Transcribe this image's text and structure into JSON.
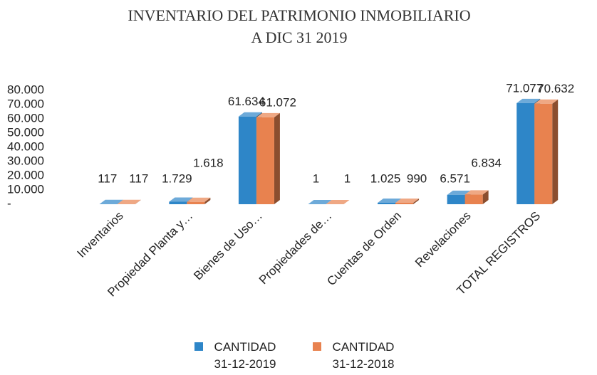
{
  "chart_data": {
    "type": "bar3d",
    "title": [
      "INVENTARIO DEL PATRIMONIO INMOBILIARIO",
      "A DIC 31 2019"
    ],
    "categories": [
      "Inventarios",
      "Propiedad Planta y…",
      "Bienes de Uso…",
      "Propiedades de…",
      "Cuentas de Orden",
      "Revelaciones",
      "TOTAL REGISTROS"
    ],
    "series": [
      {
        "name": "CANTIDAD 31-12-2019",
        "color": "#2e86c8",
        "values": [
          117,
          1729,
          61634,
          1,
          1025,
          6571,
          71077
        ],
        "value_labels": [
          "117",
          "1.729",
          "61.634",
          "1",
          "1.025",
          "6.571",
          "71.077"
        ]
      },
      {
        "name": "CANTIDAD 31-12-2018",
        "color": "#e8824f",
        "values": [
          117,
          1618,
          61072,
          1,
          990,
          6834,
          70632
        ],
        "value_labels": [
          "117",
          "1.618",
          "61.072",
          "1",
          "990",
          "6.834",
          "70.632"
        ]
      }
    ],
    "ylim": [
      0,
      80000
    ],
    "yticks": [
      {
        "value": 0,
        "label": "-"
      },
      {
        "value": 10000,
        "label": "10.000"
      },
      {
        "value": 20000,
        "label": "20.000"
      },
      {
        "value": 30000,
        "label": "30.000"
      },
      {
        "value": 40000,
        "label": "40.000"
      },
      {
        "value": 50000,
        "label": "50.000"
      },
      {
        "value": 60000,
        "label": "60.000"
      },
      {
        "value": 70000,
        "label": "70.000"
      },
      {
        "value": 80000,
        "label": "80.000"
      }
    ],
    "grid": false,
    "legend": "bottom"
  }
}
